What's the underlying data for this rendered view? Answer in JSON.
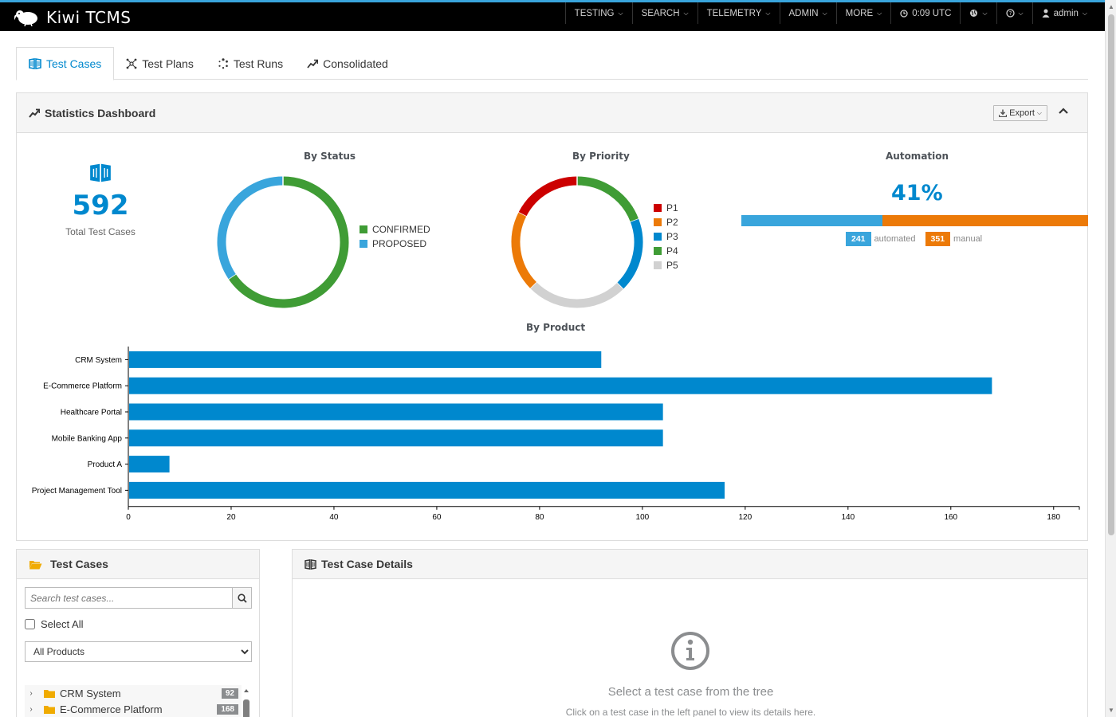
{
  "navbar": {
    "brand": "Kiwi TCMS",
    "items": [
      {
        "label": "TESTING",
        "icon": "chevron-down-icon"
      },
      {
        "label": "SEARCH",
        "icon": "chevron-down-icon"
      },
      {
        "label": "TELEMETRY",
        "icon": "chevron-down-icon"
      },
      {
        "label": "ADMIN",
        "icon": "chevron-down-icon"
      },
      {
        "label": "MORE",
        "icon": "chevron-down-icon"
      }
    ],
    "clock": "0:09 UTC",
    "user": "admin"
  },
  "tabs": [
    {
      "label": "Test Cases",
      "icon": "book-icon",
      "active": true
    },
    {
      "label": "Test Plans",
      "icon": "sitemap-icon",
      "active": false
    },
    {
      "label": "Test Runs",
      "icon": "spinner-icon",
      "active": false
    },
    {
      "label": "Consolidated",
      "icon": "trend-icon",
      "active": false
    }
  ],
  "stats": {
    "title": "Statistics Dashboard",
    "export_label": "Export",
    "total_value": "592",
    "total_label": "Total Test Cases",
    "status_title": "By Status",
    "priority_title": "By Priority",
    "automation_title": "Automation",
    "product_title": "By Product",
    "automation_pct": "41%",
    "automated_count": "241",
    "automated_label": "automated",
    "manual_count": "351",
    "manual_label": "manual",
    "colors": {
      "automated": "#39a5dc",
      "manual": "#ec7a08",
      "accent": "#0088ce"
    }
  },
  "chart_data": [
    {
      "type": "pie",
      "title": "By Status",
      "categories": [
        "CONFIRMED",
        "PROPOSED"
      ],
      "values": [
        388,
        204
      ],
      "colors": [
        "#3f9c35",
        "#39a5dc"
      ],
      "legend": "right"
    },
    {
      "type": "pie",
      "title": "By Priority",
      "categories": [
        "P1",
        "P2",
        "P3",
        "P4",
        "P5"
      ],
      "values": [
        103,
        118,
        109,
        114,
        148
      ],
      "colors": [
        "#cc0000",
        "#ec7a08",
        "#0088ce",
        "#3f9c35",
        "#d1d1d1"
      ],
      "start_order": [
        "P4",
        "P3",
        "P5",
        "P2",
        "P1"
      ],
      "legend": "right"
    },
    {
      "type": "bar",
      "orientation": "horizontal",
      "title": "By Product",
      "categories": [
        "CRM System",
        "E-Commerce Platform",
        "Healthcare Portal",
        "Mobile Banking App",
        "Product A",
        "Project Management Tool"
      ],
      "values": [
        92,
        168,
        104,
        104,
        8,
        116
      ],
      "color": "#0088ce",
      "xlim": [
        0,
        185
      ],
      "xticks": [
        0,
        20,
        40,
        60,
        80,
        100,
        120,
        140,
        160,
        180
      ]
    }
  ],
  "testcases_panel": {
    "title": "Test Cases",
    "search_placeholder": "Search test cases...",
    "select_all": "Select All",
    "product_filter": "All Products",
    "tree": [
      {
        "label": "CRM System",
        "count": "92"
      },
      {
        "label": "E-Commerce Platform",
        "count": "168"
      }
    ]
  },
  "details_panel": {
    "title": "Test Case Details",
    "empty_title": "Select a test case from the tree",
    "empty_sub": "Click on a test case in the left panel to view its details here."
  }
}
